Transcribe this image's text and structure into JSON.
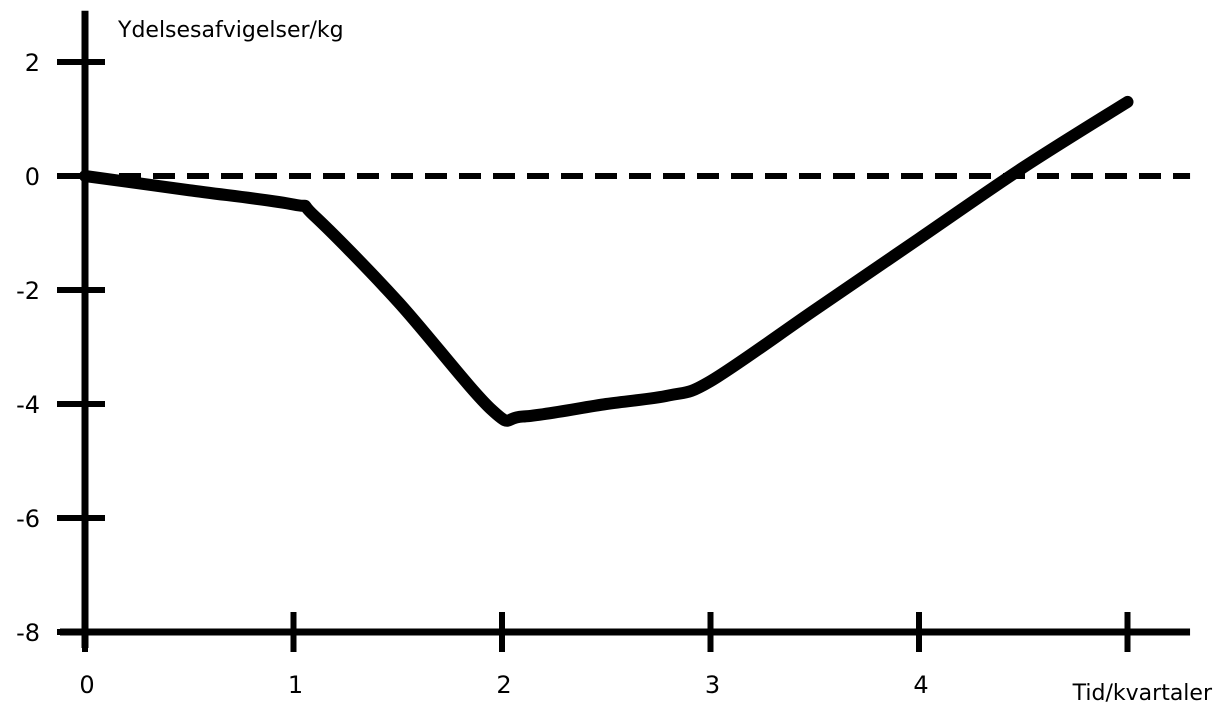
{
  "chart_data": {
    "type": "line",
    "ylabel": "Ydelsesafvigelser/kg",
    "xlabel": "Tid/kvartaler",
    "xlim": [
      0,
      5.3
    ],
    "ylim": [
      -8,
      2.9
    ],
    "x_ticks": [
      0,
      1,
      2,
      3,
      4,
      5
    ],
    "x_tick_labels": [
      "0",
      "1",
      "2",
      "3",
      "4",
      ""
    ],
    "y_ticks": [
      2,
      0,
      -2,
      -4,
      -6,
      -8
    ],
    "y_tick_labels": [
      "2",
      "0",
      "-2",
      "-4",
      "-6",
      "-8"
    ],
    "grid": false,
    "reference_line": {
      "y": 0,
      "style": "dashed"
    },
    "series": [
      {
        "x": [
          0,
          0.5,
          1.0,
          1.1,
          1.5,
          1.95,
          2.1,
          2.5,
          2.8,
          3.0,
          3.5,
          4.0,
          4.5,
          5.0
        ],
        "y": [
          0,
          -0.25,
          -0.5,
          -0.7,
          -2.2,
          -4.1,
          -4.22,
          -4.0,
          -3.85,
          -3.6,
          -2.35,
          -1.1,
          0.15,
          1.3
        ]
      }
    ],
    "colors": {
      "line": "#000000",
      "axis": "#000000"
    }
  }
}
